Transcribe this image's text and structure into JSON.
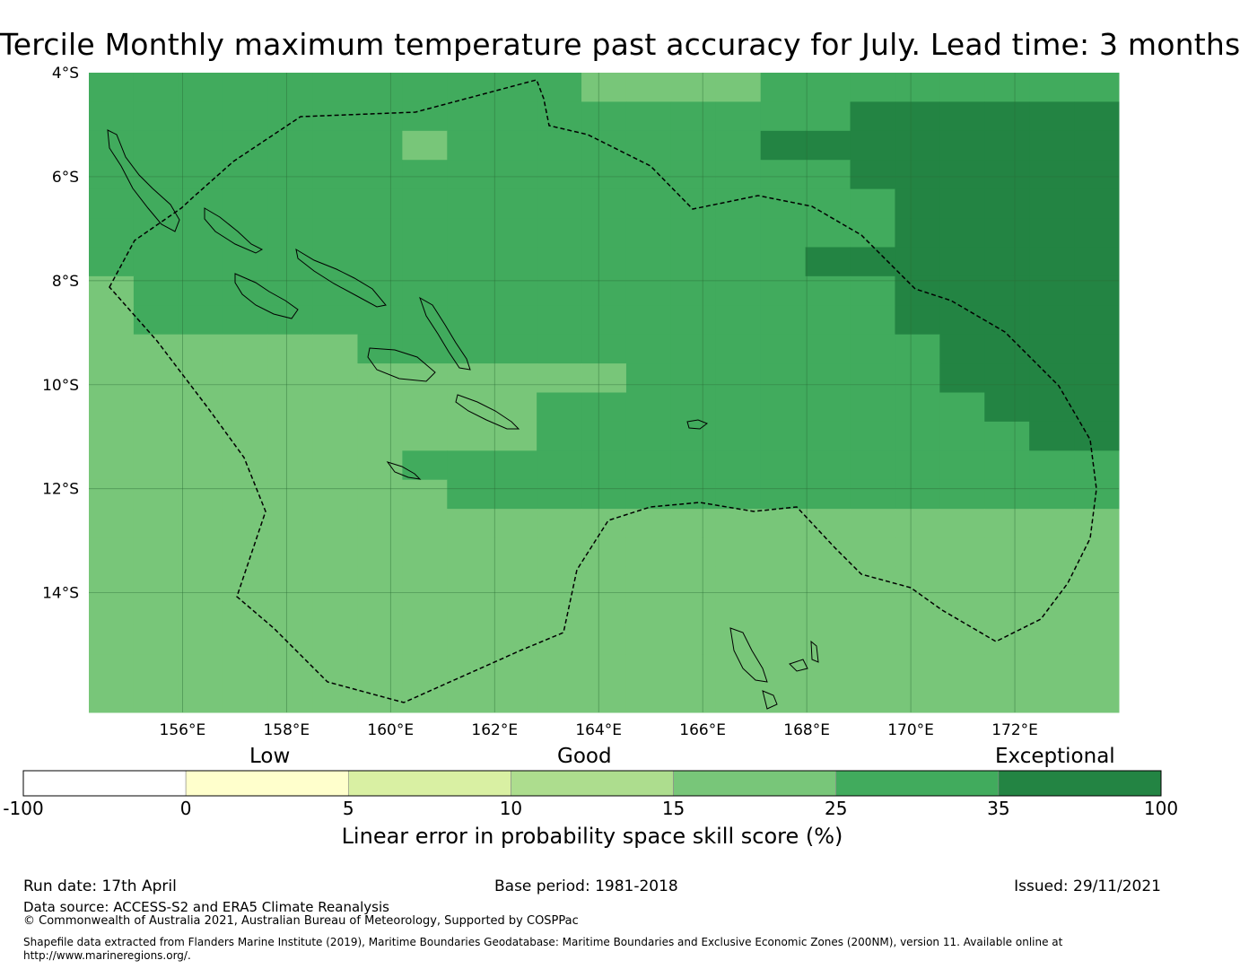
{
  "title": "Tercile Monthly maximum temperature past accuracy for July. Lead time: 3 months",
  "map": {
    "lat_labels": [
      "4°S",
      "6°S",
      "8°S",
      "10°S",
      "12°S",
      "14°S"
    ],
    "lon_labels": [
      "156°E",
      "158°E",
      "160°E",
      "162°E",
      "164°E",
      "166°E",
      "168°E",
      "170°E",
      "172°E"
    ],
    "extent": {
      "lon_min": 154.2,
      "lon_max": 174.0,
      "lat_min": -16.3,
      "lat_max": -4.0
    },
    "cell_size_deg": 0.8333,
    "levels_legend": {
      "0": "15 to 25",
      "1": "25 to 35",
      "2": "35 to 100",
      "3": "10 to 15"
    },
    "grid_levels": [
      "11111111111000011111111",
      "11111111111111111222222",
      "11111110111111122222222",
      "11111111111111111222222",
      "11111111111111111122222",
      "11111111111111111122222",
      "11111111111111112222222",
      "01111111111111111122222",
      "01111111111111111122222",
      "00000011111111111112222",
      "00000000000011111112222",
      "00000000001111111111222",
      "00000000001111111111122",
      "00000001111111111111111",
      "00000000111111111111111",
      "00000000000000000000000",
      "00000000000000000000000",
      "00000000000000000000000",
      "00000000000000000000000",
      "00000000000000000000000",
      "00000000000000000000000",
      "00000000000000000000000"
    ],
    "fill_colors": {
      "10-15": "#addd8e",
      "15-25": "#78c679",
      "25-35": "#41ab5d",
      "35-100": "#238443"
    },
    "gridline_color": "#2a6a35",
    "eez_line": "dashed black"
  },
  "colorbar": {
    "categories": [
      {
        "label": "Low"
      },
      {
        "label": "Good"
      },
      {
        "label": "Exceptional"
      }
    ],
    "ticks": [
      "-100",
      "0",
      "5",
      "10",
      "15",
      "25",
      "35",
      "100"
    ],
    "colors": [
      "#ffffff",
      "#ffffcc",
      "#d9f0a3",
      "#addd8e",
      "#78c679",
      "#41ab5d",
      "#238443"
    ],
    "label": "Linear error in probability space skill score (%)"
  },
  "footer": {
    "run_date": "Run date: 17th April",
    "base_period": "Base period: 1981-2018",
    "issued": "Issued: 29/11/2021",
    "data_source": "Data source: ACCESS-S2 and ERA5 Climate Reanalysis",
    "copyright": "© Commonwealth of Australia 2021, Australian Bureau of Meteorology, Supported by COSPPac",
    "shapefile_note": "Shapefile data extracted from Flanders Marine Institute (2019), Maritime Boundaries Geodatabase: Maritime Boundaries and Exclusive Economic Zones (200NM), version 11. Available online at http://www.marineregions.org/."
  }
}
